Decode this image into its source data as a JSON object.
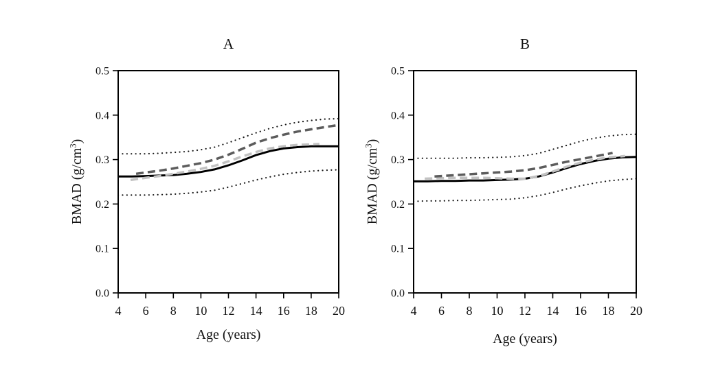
{
  "figure": {
    "background": "#ffffff"
  },
  "axis_labels": {
    "y_main": "BMAD (g/cm",
    "y_sup": "3",
    "y_close": ")"
  },
  "colors": {
    "frame": "#000000",
    "solid_line": "#000000",
    "dotted_line": "#1a1a1a",
    "dark_dashed": "#5c5c5c",
    "light_dashed": "#c2c2c2"
  },
  "chart_data": [
    {
      "type": "line",
      "title": "A",
      "xlabel": "Age (years)",
      "ylabel": "BMAD (g/cm³)",
      "xlim": [
        4,
        20
      ],
      "ylim": [
        0,
        0.5
      ],
      "xticks": [
        4,
        6,
        8,
        10,
        12,
        14,
        16,
        18,
        20
      ],
      "xtick_labels": [
        "4",
        "6",
        "8",
        "10",
        "12",
        "14",
        "16",
        "18",
        "20"
      ],
      "yticks": [
        0,
        0.1,
        0.2,
        0.3,
        0.4,
        0.5
      ],
      "ytick_labels": [
        "0.0",
        "0.1",
        "0.2",
        "0.3",
        "0.4",
        "0.5"
      ],
      "grid": false,
      "legend": "none",
      "series": [
        {
          "name": "upper-dotted-limit",
          "style": "dotted",
          "color": "#1a1a1a",
          "width": 2.2,
          "x": [
            4,
            5,
            6,
            7,
            8,
            9,
            10,
            11,
            12,
            13,
            14,
            15,
            16,
            17,
            18,
            19,
            20
          ],
          "y": [
            0.313,
            0.313,
            0.313,
            0.314,
            0.316,
            0.318,
            0.322,
            0.328,
            0.338,
            0.349,
            0.36,
            0.37,
            0.378,
            0.384,
            0.388,
            0.391,
            0.392
          ]
        },
        {
          "name": "lower-dotted-limit",
          "style": "dotted",
          "color": "#1a1a1a",
          "width": 2.2,
          "x": [
            4,
            5,
            6,
            7,
            8,
            9,
            10,
            11,
            12,
            13,
            14,
            15,
            16,
            17,
            18,
            19,
            20
          ],
          "y": [
            0.22,
            0.22,
            0.22,
            0.221,
            0.222,
            0.224,
            0.227,
            0.231,
            0.238,
            0.246,
            0.254,
            0.261,
            0.267,
            0.271,
            0.274,
            0.276,
            0.277
          ]
        },
        {
          "name": "solid-black-median",
          "style": "solid",
          "color": "#000000",
          "width": 3,
          "x": [
            4,
            5,
            6,
            7,
            8,
            9,
            10,
            11,
            12,
            13,
            14,
            15,
            16,
            17,
            18,
            19,
            20
          ],
          "y": [
            0.262,
            0.262,
            0.263,
            0.264,
            0.265,
            0.268,
            0.272,
            0.278,
            0.287,
            0.298,
            0.31,
            0.319,
            0.325,
            0.328,
            0.33,
            0.33,
            0.33
          ]
        },
        {
          "name": "light-gray-dashed",
          "style": "dashed",
          "color": "#c2c2c2",
          "width": 3.5,
          "x": [
            4.9,
            6,
            7,
            8,
            9,
            10,
            11,
            12,
            13,
            14,
            15,
            16,
            17,
            18,
            18.6
          ],
          "y": [
            0.254,
            0.259,
            0.263,
            0.268,
            0.273,
            0.279,
            0.286,
            0.296,
            0.307,
            0.317,
            0.325,
            0.33,
            0.333,
            0.334,
            0.335
          ]
        },
        {
          "name": "dark-gray-dashed",
          "style": "dashed",
          "color": "#5c5c5c",
          "width": 3.5,
          "x": [
            5.3,
            6,
            7,
            8,
            9,
            10,
            11,
            12,
            13,
            14,
            15,
            16,
            17,
            18,
            19,
            20
          ],
          "y": [
            0.268,
            0.271,
            0.275,
            0.28,
            0.286,
            0.292,
            0.3,
            0.311,
            0.324,
            0.338,
            0.348,
            0.356,
            0.363,
            0.368,
            0.373,
            0.378
          ]
        }
      ]
    },
    {
      "type": "line",
      "title": "B",
      "xlabel": "Age (years)",
      "ylabel": "BMAD (g/cm³)",
      "xlim": [
        4,
        20
      ],
      "ylim": [
        0,
        0.5
      ],
      "xticks": [
        4,
        6,
        8,
        10,
        12,
        14,
        16,
        18,
        20
      ],
      "xtick_labels": [
        "4",
        "6",
        "8",
        "10",
        "12",
        "14",
        "16",
        "18",
        "20"
      ],
      "yticks": [
        0,
        0.1,
        0.2,
        0.3,
        0.4,
        0.5
      ],
      "ytick_labels": [
        "0.0",
        "0.1",
        "0.2",
        "0.3",
        "0.4",
        "0.5"
      ],
      "grid": false,
      "legend": "none",
      "series": [
        {
          "name": "upper-dotted-limit",
          "style": "dotted",
          "color": "#1a1a1a",
          "width": 2.2,
          "x": [
            4,
            5,
            6,
            7,
            8,
            9,
            10,
            11,
            12,
            13,
            14,
            15,
            16,
            17,
            18,
            19,
            20
          ],
          "y": [
            0.303,
            0.303,
            0.303,
            0.303,
            0.304,
            0.304,
            0.305,
            0.306,
            0.309,
            0.314,
            0.323,
            0.332,
            0.341,
            0.348,
            0.353,
            0.356,
            0.357
          ]
        },
        {
          "name": "lower-dotted-limit",
          "style": "dotted",
          "color": "#1a1a1a",
          "width": 2.2,
          "x": [
            4,
            5,
            6,
            7,
            8,
            9,
            10,
            11,
            12,
            13,
            14,
            15,
            16,
            17,
            18,
            19,
            20
          ],
          "y": [
            0.206,
            0.207,
            0.207,
            0.208,
            0.208,
            0.209,
            0.21,
            0.211,
            0.214,
            0.219,
            0.226,
            0.234,
            0.241,
            0.247,
            0.252,
            0.255,
            0.257
          ]
        },
        {
          "name": "solid-black-median",
          "style": "solid",
          "color": "#000000",
          "width": 3,
          "x": [
            4,
            5,
            6,
            7,
            8,
            9,
            10,
            11,
            12,
            13,
            14,
            15,
            16,
            17,
            18,
            19,
            20
          ],
          "y": [
            0.251,
            0.251,
            0.252,
            0.252,
            0.253,
            0.253,
            0.254,
            0.255,
            0.257,
            0.262,
            0.271,
            0.281,
            0.29,
            0.297,
            0.302,
            0.305,
            0.306
          ]
        },
        {
          "name": "light-gray-dashed",
          "style": "dashed",
          "color": "#c2c2c2",
          "width": 3.5,
          "x": [
            4.8,
            6,
            7,
            8,
            9,
            10,
            11,
            12,
            13,
            14,
            15,
            16,
            17,
            18,
            19.2
          ],
          "y": [
            0.257,
            0.258,
            0.259,
            0.259,
            0.259,
            0.258,
            0.257,
            0.257,
            0.263,
            0.273,
            0.284,
            0.293,
            0.3,
            0.305,
            0.308
          ]
        },
        {
          "name": "dark-gray-dashed",
          "style": "dashed",
          "color": "#5c5c5c",
          "width": 3.5,
          "x": [
            5.5,
            6,
            7,
            8,
            9,
            10,
            11,
            12,
            13,
            14,
            15,
            16,
            17,
            18,
            18.3
          ],
          "y": [
            0.262,
            0.263,
            0.265,
            0.267,
            0.269,
            0.271,
            0.273,
            0.276,
            0.281,
            0.288,
            0.295,
            0.301,
            0.307,
            0.313,
            0.315
          ]
        }
      ]
    }
  ]
}
